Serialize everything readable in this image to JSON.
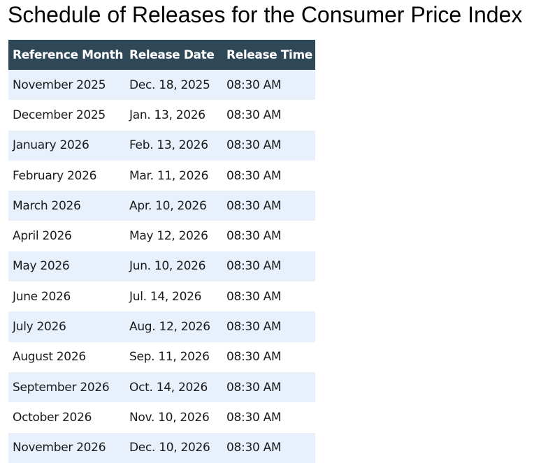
{
  "page": {
    "title": "Schedule of Releases for the Consumer Price Index"
  },
  "table": {
    "headers": [
      "Reference Month",
      "Release Date",
      "Release Time"
    ],
    "rows": [
      [
        "November 2025",
        "Dec. 18, 2025",
        "08:30 AM"
      ],
      [
        "December 2025",
        "Jan. 13, 2026",
        "08:30 AM"
      ],
      [
        "January 2026",
        "Feb. 13, 2026",
        "08:30 AM"
      ],
      [
        "February 2026",
        "Mar. 11, 2026",
        "08:30 AM"
      ],
      [
        "March 2026",
        "Apr. 10, 2026",
        "08:30 AM"
      ],
      [
        "April 2026",
        "May 12, 2026",
        "08:30 AM"
      ],
      [
        "May 2026",
        "Jun. 10, 2026",
        "08:30 AM"
      ],
      [
        "June 2026",
        "Jul. 14, 2026",
        "08:30 AM"
      ],
      [
        "July 2026",
        "Aug. 12, 2026",
        "08:30 AM"
      ],
      [
        "August 2026",
        "Sep. 11, 2026",
        "08:30 AM"
      ],
      [
        "September 2026",
        "Oct. 14, 2026",
        "08:30 AM"
      ],
      [
        "October 2026",
        "Nov. 10, 2026",
        "08:30 AM"
      ],
      [
        "November 2026",
        "Dec. 10, 2026",
        "08:30 AM"
      ]
    ]
  },
  "colors": {
    "header_background": "#2f4858",
    "header_text": "#ffffff",
    "stripe_row": "#e8f0fc",
    "plain_row": "#ffffff"
  }
}
